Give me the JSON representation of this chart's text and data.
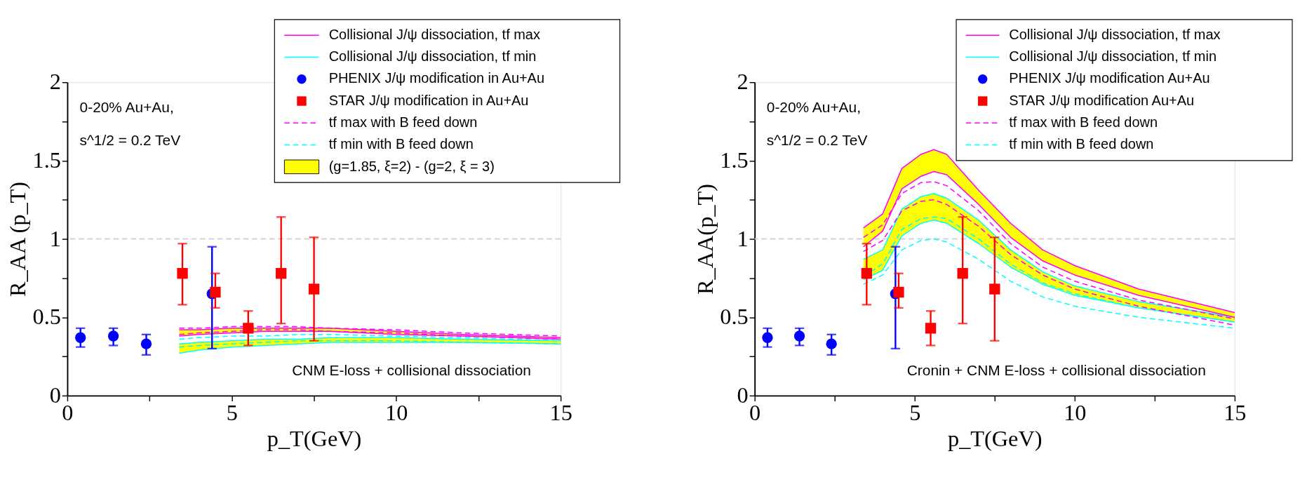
{
  "chart_data": [
    {
      "type": "line",
      "xlabel": "p_T(GeV)",
      "ylabel": "R_AA (p_T)",
      "xlim": [
        0,
        15
      ],
      "ylim": [
        0,
        2
      ],
      "xticks": [
        0,
        {
          "value": 2.5,
          "label": null
        },
        5,
        {
          "value": 7.5,
          "label": null
        },
        10,
        {
          "value": 12.5,
          "label": null
        },
        15
      ],
      "yticks": [
        0,
        {
          "value": 0.25,
          "label": null
        },
        0.5,
        {
          "value": 0.75,
          "label": null
        },
        1,
        {
          "value": 1.25,
          "label": null
        },
        1.5,
        {
          "value": 1.75,
          "label": null
        },
        2
      ],
      "grid": false,
      "legend": "top right",
      "ref_lines": [
        {
          "axis": "y",
          "value": 1,
          "color": "#d3d3d3",
          "line_style": "dashed"
        }
      ],
      "annotations": [
        "0-20% Au+Au,",
        "s^1/2 = 0.2 TeV",
        "CNM E-loss + collisional dissociation"
      ],
      "series": [
        {
          "name": "Collisional J/ψ dissociation, tf max",
          "color": "#ff00ff",
          "line_style": "solid",
          "marker": "none",
          "x": [
            3.4,
            4,
            5,
            6,
            7,
            8,
            10,
            12,
            15
          ],
          "values": [
            0.42,
            0.42,
            0.43,
            0.43,
            0.43,
            0.43,
            0.41,
            0.39,
            0.37
          ]
        },
        {
          "name": "Collisional J/ψ  dissociation, tf min",
          "color": "#00ffff",
          "line_style": "solid",
          "marker": "none",
          "x": [
            3.4,
            4,
            5,
            6,
            7,
            8,
            10,
            12,
            15
          ],
          "values": [
            0.33,
            0.34,
            0.35,
            0.36,
            0.36,
            0.37,
            0.37,
            0.36,
            0.35
          ]
        },
        {
          "name": "PHENIX J/ψ modification in Au+Au",
          "type": "scatter",
          "color": "#0000ff",
          "marker": "circle",
          "x": [
            0.4,
            1.4,
            2.4,
            4.4
          ],
          "values": [
            0.37,
            0.38,
            0.33,
            0.65
          ],
          "errors": [
            [
              0.31,
              0.43
            ],
            [
              0.32,
              0.43
            ],
            [
              0.26,
              0.39
            ],
            [
              0.3,
              0.95
            ]
          ]
        },
        {
          "name": "STAR J/ψ modification in Au+Au",
          "type": "scatter",
          "color": "#ff0000",
          "marker": "square",
          "x": [
            3.5,
            4.5,
            5.5,
            6.5,
            7.5
          ],
          "values": [
            0.78,
            0.66,
            0.43,
            0.78,
            0.68
          ],
          "errors": [
            [
              0.58,
              0.97
            ],
            [
              0.56,
              0.78
            ],
            [
              0.32,
              0.54
            ],
            [
              0.46,
              1.14
            ],
            [
              0.35,
              1.01
            ]
          ]
        },
        {
          "name": "tf max with B feed down",
          "color": "#ff00ff",
          "line_style": "dashed",
          "marker": "none",
          "x": [
            3.4,
            4,
            5,
            6,
            7,
            8,
            10,
            12,
            15
          ],
          "values": [
            0.43,
            0.43,
            0.44,
            0.44,
            0.44,
            0.43,
            0.42,
            0.4,
            0.38
          ]
        },
        {
          "name": "tf min with B feed down",
          "color": "#00ffff",
          "line_style": "dashed",
          "marker": "none",
          "x": [
            3.4,
            4,
            5,
            6,
            7,
            8,
            10,
            12,
            15
          ],
          "values": [
            0.36,
            0.37,
            0.38,
            0.38,
            0.39,
            0.39,
            0.38,
            0.37,
            0.35
          ]
        },
        {
          "name": "(g=1.85, ξ=2) - (g=2, ξ = 3)",
          "type": "area",
          "color": "#ffff00",
          "x": [
            3.4,
            4,
            5,
            6,
            7,
            8,
            10,
            12,
            15
          ],
          "values": [
            null,
            null,
            null,
            null,
            null,
            null,
            null,
            null,
            null
          ],
          "lower": [
            0.38,
            0.39,
            0.4,
            0.41,
            0.41,
            0.41,
            0.39,
            0.38,
            0.36
          ],
          "upper": [
            0.42,
            0.42,
            0.43,
            0.43,
            0.43,
            0.43,
            0.41,
            0.39,
            0.37
          ]
        },
        {
          "type": "area",
          "color": "#fffe00",
          "x": [
            3.4,
            4,
            5,
            6,
            7,
            8,
            10,
            12,
            15
          ],
          "values": [
            null,
            null,
            null,
            null,
            null,
            null,
            null,
            null,
            null
          ],
          "lower": [
            0.27,
            0.29,
            0.31,
            0.32,
            0.33,
            0.34,
            0.34,
            0.34,
            0.33
          ],
          "upper": [
            0.33,
            0.34,
            0.35,
            0.36,
            0.36,
            0.37,
            0.37,
            0.36,
            0.35
          ]
        },
        {
          "color": "#ff00ff",
          "line_style": "solid",
          "marker": "none",
          "x": [
            3.4,
            4,
            5,
            6,
            7,
            8,
            10,
            12,
            15
          ],
          "values": [
            0.38,
            0.39,
            0.4,
            0.41,
            0.41,
            0.41,
            0.39,
            0.38,
            0.36
          ]
        },
        {
          "color": "#00ffff",
          "line_style": "solid",
          "marker": "none",
          "x": [
            3.4,
            4,
            5,
            6,
            7,
            8,
            10,
            12,
            15
          ],
          "values": [
            0.27,
            0.29,
            0.31,
            0.32,
            0.33,
            0.34,
            0.34,
            0.34,
            0.33
          ]
        },
        {
          "color": "#ff00ff",
          "line_style": "dashed",
          "marker": "none",
          "x": [
            3.4,
            4,
            5,
            6,
            7,
            8,
            10,
            12,
            15
          ],
          "values": [
            0.39,
            0.4,
            0.41,
            0.42,
            0.42,
            0.41,
            0.4,
            0.38,
            0.36
          ]
        },
        {
          "color": "#00ffff",
          "line_style": "dashed",
          "marker": "none",
          "x": [
            3.4,
            4,
            5,
            6,
            7,
            8,
            10,
            12,
            15
          ],
          "values": [
            0.31,
            0.32,
            0.33,
            0.34,
            0.35,
            0.35,
            0.35,
            0.34,
            0.33
          ]
        }
      ]
    },
    {
      "type": "line",
      "xlabel": "p_T(GeV)",
      "ylabel": "R_AA(p_T)",
      "xlim": [
        0,
        15
      ],
      "ylim": [
        0,
        2
      ],
      "xticks": [
        0,
        {
          "value": 2.5,
          "label": null
        },
        5,
        {
          "value": 7.5,
          "label": null
        },
        10,
        {
          "value": 12.5,
          "label": null
        },
        15
      ],
      "yticks": [
        0,
        {
          "value": 0.25,
          "label": null
        },
        0.5,
        {
          "value": 0.75,
          "label": null
        },
        1,
        {
          "value": 1.25,
          "label": null
        },
        1.5,
        {
          "value": 1.75,
          "label": null
        },
        2
      ],
      "grid": false,
      "legend": "top right",
      "ref_lines": [
        {
          "axis": "y",
          "value": 1,
          "color": "#d3d3d3",
          "line_style": "dashed"
        }
      ],
      "annotations": [
        "0-20% Au+Au,",
        "s^1/2 = 0.2 TeV",
        "Cronin + CNM E-loss + collisional dissociation"
      ],
      "series": [
        {
          "name": "Collisional J/ψ dissociation, tf max",
          "color": "#ff00ff",
          "line_style": "solid",
          "marker": "none",
          "x": [
            3.4,
            4,
            4.6,
            5.2,
            5.6,
            6,
            7,
            8,
            9,
            10,
            12,
            15
          ],
          "values": [
            1.07,
            1.16,
            1.45,
            1.54,
            1.57,
            1.54,
            1.31,
            1.1,
            0.93,
            0.83,
            0.68,
            0.53
          ]
        },
        {
          "name": "Collisional J/ψ dissociation, tf min",
          "color": "#00ffff",
          "line_style": "solid",
          "marker": "none",
          "x": [
            3.4,
            4,
            4.6,
            5.2,
            5.6,
            6,
            7,
            8,
            9,
            10,
            12,
            15
          ],
          "values": [
            0.87,
            0.93,
            1.19,
            1.27,
            1.29,
            1.26,
            1.12,
            0.93,
            0.79,
            0.7,
            0.6,
            0.5
          ]
        },
        {
          "name": "PHENIX J/ψ modification Au+Au",
          "type": "scatter",
          "color": "#0000ff",
          "marker": "circle",
          "x": [
            0.4,
            1.4,
            2.4,
            4.4
          ],
          "values": [
            0.37,
            0.38,
            0.33,
            0.65
          ],
          "errors": [
            [
              0.31,
              0.43
            ],
            [
              0.32,
              0.43
            ],
            [
              0.26,
              0.39
            ],
            [
              0.3,
              0.95
            ]
          ]
        },
        {
          "name": "STAR J/ψ modification Au+Au",
          "type": "scatter",
          "color": "#ff0000",
          "marker": "square",
          "x": [
            3.5,
            4.5,
            5.5,
            6.5,
            7.5
          ],
          "values": [
            0.78,
            0.66,
            0.43,
            0.78,
            0.68
          ],
          "errors": [
            [
              0.58,
              0.97
            ],
            [
              0.56,
              0.78
            ],
            [
              0.32,
              0.54
            ],
            [
              0.46,
              1.14
            ],
            [
              0.35,
              1.01
            ]
          ]
        },
        {
          "name": " tf max with B feed down",
          "color": "#ff00ff",
          "line_style": "dashed",
          "marker": "none",
          "x": [
            3.4,
            4,
            4.6,
            5.2,
            5.6,
            6,
            7,
            8,
            9,
            10,
            12,
            15
          ],
          "values": [
            1.01,
            1.09,
            1.29,
            1.36,
            1.365,
            1.34,
            1.18,
            0.97,
            0.82,
            0.73,
            0.61,
            0.49
          ]
        },
        {
          "name": "tf min with B feed down",
          "color": "#00ffff",
          "line_style": "dashed",
          "marker": "none",
          "x": [
            3.4,
            4,
            4.6,
            5.2,
            5.6,
            6,
            7,
            8,
            9,
            10,
            12,
            15
          ],
          "values": [
            0.76,
            0.84,
            1.06,
            1.13,
            1.14,
            1.13,
            1.0,
            0.84,
            0.72,
            0.65,
            0.56,
            0.47
          ]
        },
        {
          "type": "area",
          "color": "#ffff00",
          "x": [
            3.4,
            4,
            4.6,
            5.2,
            5.6,
            6,
            7,
            8,
            9,
            10,
            12,
            15
          ],
          "values": [
            null,
            null,
            null,
            null,
            null,
            null,
            null,
            null,
            null,
            null,
            null,
            null
          ],
          "lower": [
            0.95,
            1.05,
            1.32,
            1.4,
            1.43,
            1.41,
            1.22,
            1.01,
            0.86,
            0.77,
            0.64,
            0.5
          ],
          "upper": [
            1.07,
            1.16,
            1.45,
            1.54,
            1.57,
            1.54,
            1.31,
            1.1,
            0.93,
            0.83,
            0.68,
            0.53
          ]
        },
        {
          "type": "area",
          "color": "#fffe00",
          "x": [
            3.4,
            4,
            4.6,
            5.2,
            5.6,
            6,
            7,
            8,
            9,
            10,
            12,
            15
          ],
          "values": [
            null,
            null,
            null,
            null,
            null,
            null,
            null,
            null,
            null,
            null,
            null,
            null
          ],
          "lower": [
            0.74,
            0.8,
            1.02,
            1.1,
            1.12,
            1.1,
            0.97,
            0.82,
            0.71,
            0.64,
            0.56,
            0.47
          ],
          "upper": [
            0.87,
            0.93,
            1.19,
            1.27,
            1.29,
            1.26,
            1.12,
            0.93,
            0.79,
            0.7,
            0.6,
            0.5
          ]
        },
        {
          "color": "#ff00ff",
          "line_style": "solid",
          "marker": "none",
          "x": [
            3.4,
            4,
            4.6,
            5.2,
            5.6,
            6,
            7,
            8,
            9,
            10,
            12,
            15
          ],
          "values": [
            0.95,
            1.05,
            1.32,
            1.4,
            1.43,
            1.41,
            1.22,
            1.01,
            0.86,
            0.77,
            0.64,
            0.5
          ]
        },
        {
          "color": "#00ffff",
          "line_style": "solid",
          "marker": "none",
          "x": [
            3.4,
            4,
            4.6,
            5.2,
            5.6,
            6,
            7,
            8,
            9,
            10,
            12,
            15
          ],
          "values": [
            0.74,
            0.8,
            1.02,
            1.1,
            1.12,
            1.1,
            0.97,
            0.82,
            0.71,
            0.64,
            0.56,
            0.47
          ]
        },
        {
          "color": "#ff00ff",
          "line_style": "dashed",
          "marker": "none",
          "x": [
            3.4,
            4,
            4.6,
            5.2,
            5.6,
            6,
            7,
            8,
            9,
            10,
            12,
            15
          ],
          "values": [
            0.92,
            0.99,
            1.18,
            1.24,
            1.25,
            1.22,
            1.08,
            0.9,
            0.77,
            0.68,
            0.57,
            0.45
          ]
        },
        {
          "color": "#00ffff",
          "line_style": "dashed",
          "marker": "none",
          "x": [
            3.4,
            4,
            4.6,
            5.2,
            5.6,
            6,
            7,
            8,
            9,
            10,
            12,
            15
          ],
          "values": [
            0.71,
            0.77,
            0.93,
            0.99,
            1.0,
            0.98,
            0.87,
            0.73,
            0.63,
            0.57,
            0.5,
            0.43
          ]
        }
      ]
    }
  ]
}
